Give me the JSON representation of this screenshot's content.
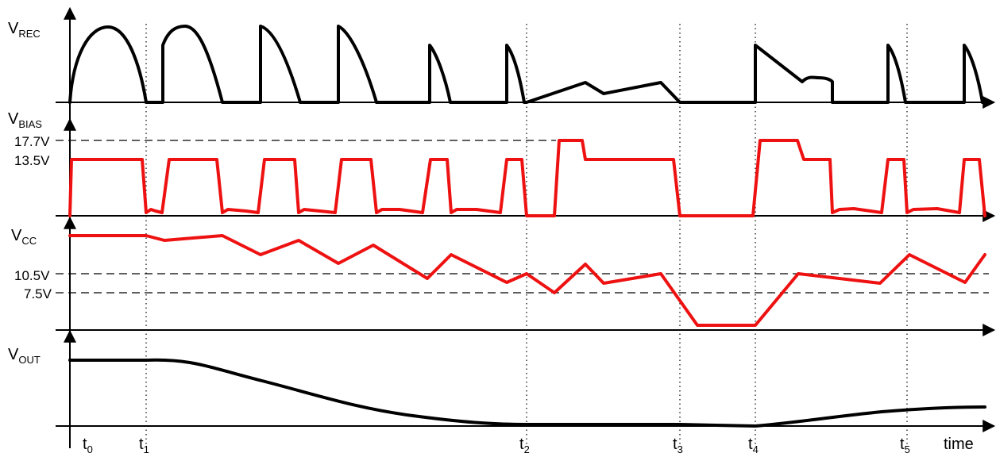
{
  "labels": {
    "v_rec": {
      "main": "V",
      "sub": "REC"
    },
    "v_bias": {
      "main": "V",
      "sub": "BIAS"
    },
    "v_cc": {
      "main": "V",
      "sub": "CC"
    },
    "v_out": {
      "main": "V",
      "sub": "OUT"
    },
    "time": "time"
  },
  "levels": {
    "bias_high": "17.7V",
    "bias_mid": "13.5V",
    "cc_high": "10.5V",
    "cc_low": "7.5V"
  },
  "time_markers": [
    {
      "main": "t",
      "sub": "0"
    },
    {
      "main": "t",
      "sub": "1"
    },
    {
      "main": "t",
      "sub": "2"
    },
    {
      "main": "t",
      "sub": "3"
    },
    {
      "main": "t",
      "sub": "4"
    },
    {
      "main": "t",
      "sub": "5"
    }
  ],
  "colors": {
    "rectified_waveform": "#000000",
    "bias_waveform": "#ee1111",
    "vcc_waveform": "#ee1111",
    "vout_waveform": "#000000"
  }
}
